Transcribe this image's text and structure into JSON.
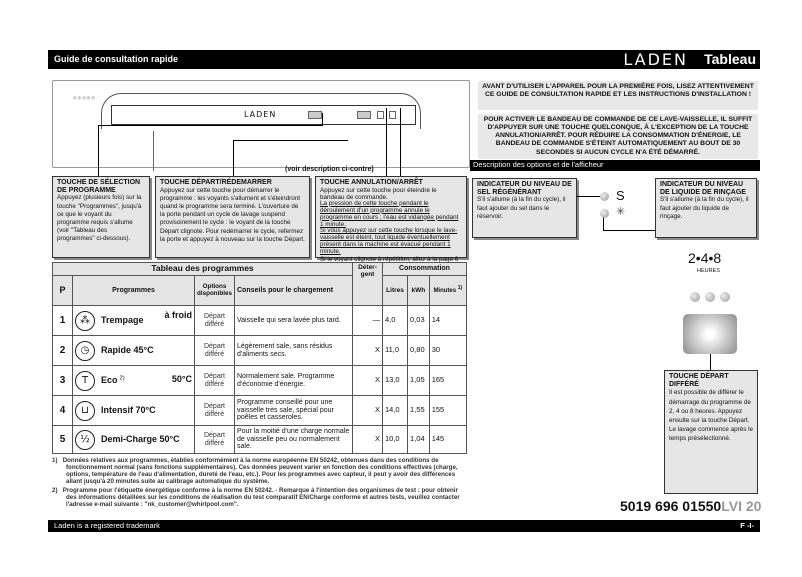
{
  "header": {
    "title": "Guide de consultation rapide",
    "brand": "LADEN",
    "section": "Tableau"
  },
  "panel": {
    "brand": "LADEN",
    "see_description": "(voir description ci-contre)"
  },
  "callouts": [
    {
      "title": "TOUCHE DE SÉLECTION DE PROGRAMME",
      "text": "Appuyez (plusieurs fois) sur la touche \"Programmes\", jusqu'à ce que le voyant du programme requis s'allume (voir \"Tableau des programmes\" ci-dessous)."
    },
    {
      "title": "TOUCHE DÉPART/RÉDEMARRER",
      "text": "Appuyez sur cette touche pour démarrer le programme : les voyants s'allument et s'éteindront quand le programme sera terminé. L'ouverture de la porte pendant un cycle de lavage suspend provisoirement le cycle : le voyant de la touche Départ clignote. Pour redémarrer le cycle, refermez la porte et appuyez à nouveau sur la touche Départ."
    },
    {
      "title": "TOUCHE ANNULATION/ARRÊT",
      "text": "Appuyez sur cette touche pour éteindre le bandeau de commande.",
      "u1": "La pression de cette touche pendant le déroulement d'un programme annule le programme en cours ; l'eau est vidangée pendant 1 minute.",
      "u2": "Si vous appuyez sur cette touche lorsque le lave-vaisselle est éteint, tout liquide éventuellement présent dans la machine est évacué pendant 1 minute.",
      "text2": "Si le voyant clignote à répétition, allez à la page 6 du chapitre \"Ce qu'il convient de faire si...\"."
    }
  ],
  "table": {
    "title": "Tableau des programmes",
    "headers": {
      "p": "P",
      "programmes": "Programmes",
      "options": "Options disponibles",
      "conseils": "Conseils pour le chargement",
      "detergent": "Déter-gent",
      "consommation": "Consommation",
      "litres": "Litres",
      "kwh": "kWh",
      "minutes": "Minutes",
      "minutes_note": "1)"
    },
    "rows": [
      {
        "p": "1",
        "icon": "soak-icon",
        "name": "Trempage",
        "suffix": "à froid",
        "option": "Départ différé",
        "advice": "Vaisselle qui sera lavée plus tard.",
        "detergent": "—",
        "litres": "4,0",
        "kwh": "0,03",
        "minutes": "14"
      },
      {
        "p": "2",
        "icon": "clock-icon",
        "name": "Rapide 45°C",
        "suffix": "",
        "option": "Départ différé",
        "advice": "Légèrement sale, sans résidus d'aliments secs.",
        "detergent": "X",
        "litres": "11,0",
        "kwh": "0,80",
        "minutes": "30"
      },
      {
        "p": "3",
        "icon": "eco-icon",
        "name": "Eco",
        "note": "2)",
        "suffix": "50°C",
        "option": "Départ différé",
        "advice": "Normalement sale. Programme d'économie d'énergie.",
        "detergent": "X",
        "litres": "13,0",
        "kwh": "1,05",
        "minutes": "165"
      },
      {
        "p": "4",
        "icon": "pot-icon",
        "name": "Intensif 70°C",
        "suffix": "",
        "option": "Départ différé",
        "advice": "Programme conseillé pour une vaisselle très sale, spécial pour poêles et casseroles.",
        "detergent": "X",
        "litres": "14,0",
        "kwh": "1,55",
        "minutes": "155"
      },
      {
        "p": "5",
        "icon": "half-load-icon",
        "name": "Demi-Charge 50°C",
        "suffix": "",
        "option": "Départ différé",
        "advice": "Pour la moitié d'une charge normale de vaisselle peu ou normalement sale.",
        "detergent": "X",
        "litres": "10,0",
        "kwh": "1,04",
        "minutes": "145"
      }
    ]
  },
  "footnotes": [
    {
      "n": "1)",
      "text": "Données relatives aux programmes, établies conformément à la norme européenne EN 50242, obtenues dans des conditions de fonctionnement normal (sans fonctions supplémentaires). Ces données peuvent varier en fonction des conditions effectives (charge, options, température de l'eau d'alimentation, dureté de l'eau, etc.). Pour les programmes avec capteur, il peut y avoir des différences allant jusqu'à 20 minutes suite au calibrage automatique du système."
    },
    {
      "n": "2)",
      "text": "Programme pour l'étiquette énergétique conforme à la norme EN 50242. - Remarque à l'intention des organismes de test : pour obtenir des informations détaillées sur les conditions de réalisation du test comparatif EN/Charge conforme et autres tests, veuillez contacter l'adresse e-mail suivante : \"nk_customer@whirlpool.com\"."
    }
  ],
  "notices": [
    "AVANT D'UTILISER L'APPAREIL POUR LA PREMIÈRE FOIS, LISEZ ATTENTIVEMENT CE GUIDE DE CONSULTATION RAPIDE ET LES INSTRUCTIONS D'INSTALLATION !",
    "POUR ACTIVER LE BANDEAU DE COMMANDE DE CE LAVE-VAISSELLE, IL SUFFIT D'APPUYER SUR UNE TOUCHE QUELCONQUE, À L'EXCEPTION DE LA TOUCHE ANNULATION/ARRÊT. POUR RÉDUIRE LA CONSOMMATION D'ÉNERGIE, LE BANDEAU DE COMMANDE S'ÉTEINT AUTOMATIQUEMENT AU BOUT DE 30 SECONDES SI AUCUN CYCLE N'A ÉTÉ DÉMARRÉ."
  ],
  "options": {
    "title": "Description des options et de l'afficheur",
    "salt": {
      "title": "INDICATEUR DU NIVEAU DE SEL RÉGÉNÉRANT",
      "text": "S'il s'allume (à la fin du cycle), il faut ajouter du sel dans le réservoir."
    },
    "rinse": {
      "title": "INDICATEUR DU NIVEAU DE LIQUIDE DE RINÇAGE",
      "text": "S'il s'allume (à la fin du cycle), il faut ajouter du liquide de rinçage."
    },
    "hours": "2•4•8",
    "hours_label": "HEURES",
    "delay": {
      "title": "TOUCHE DÉPART DIFFÉRÉ",
      "text": "Il est possible de différer le démarrage du programme de 2, 4 ou 8 heures. Appuyez ensuite sur la touche Départ. Le lavage commence après le temps présélectionné."
    }
  },
  "code": {
    "main": "5019 696 01550",
    "suffix": "LVI 20"
  },
  "footer": {
    "trademark": "Laden is a registered trademark",
    "page": "F -I-"
  }
}
